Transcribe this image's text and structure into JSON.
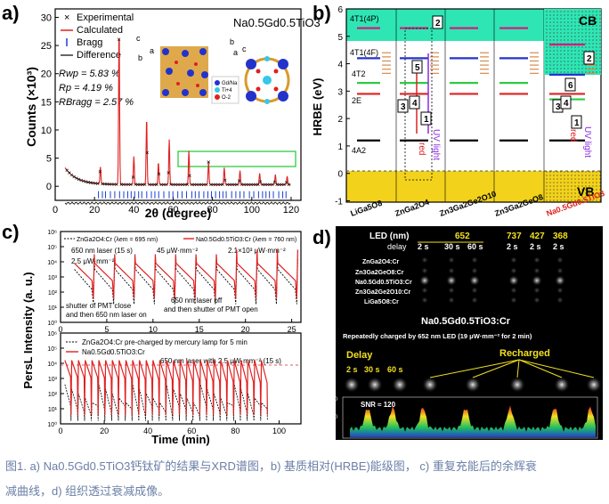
{
  "panel_a": {
    "label": "a)",
    "formula": "Na0.5Gd0.5TiO3",
    "legend": [
      "Experimental",
      "Calculated",
      "Bragg",
      "Difference"
    ],
    "stats": [
      "Rwp = 5.83 %",
      "Rp = 4.19 %",
      "RBragg = 2.57 %"
    ],
    "atoms": [
      "Gd/Na",
      "Ti+4",
      "O-2"
    ],
    "ylabel": "Counts (×10³)",
    "xlabel": "2θ (degree)",
    "xticks": [
      "0",
      "20",
      "40",
      "60",
      "80",
      "100",
      "120"
    ],
    "yticks": [
      "0",
      "5",
      "10",
      "15",
      "20",
      "25",
      "30"
    ],
    "axes_letters": [
      "c",
      "a",
      "b",
      "b",
      "c",
      "a"
    ],
    "colors": {
      "calc": "#e02020",
      "bragg": "#1a3fd8",
      "diff": "#000000",
      "exp": "#000000",
      "box": "#2ecc40"
    }
  },
  "panel_b": {
    "label": "b)",
    "ylabel": "HRBE (eV)",
    "yticks": [
      "-1",
      "0",
      "1",
      "2",
      "3",
      "4",
      "5",
      "6"
    ],
    "cb": "CB",
    "vb": "VB",
    "materials": [
      "LiGa5O8",
      "ZnGa2O4",
      "Zn3Ga2Ge2O10",
      "Zn3Ga2GeO8",
      "Na0.5Gd0.5TiO3"
    ],
    "state_labels": [
      "4T1(4P)",
      "4T1(4F)",
      "4T2",
      "2E",
      "4A2"
    ],
    "numbers": [
      "1",
      "2",
      "3",
      "4",
      "5",
      "6"
    ],
    "words": [
      "red",
      "UV light",
      "red",
      "UV light"
    ],
    "colors": {
      "cb": "#2ee6b4",
      "vb": "#f2d21a",
      "cr": "#e01080",
      "last": "#e02020"
    }
  },
  "panel_c": {
    "label": "c)",
    "top_legend": [
      "ZnGa2O4:Cr (λem = 695 nm)",
      "Na0.5Gd0.5TiO3:Cr (λem = 760 nm)"
    ],
    "top_annotations": [
      "650 nm laser (15 s)",
      "2.5 μW·mm⁻²",
      "45 μW·mm⁻²",
      "2.1×10³ μW·mm⁻²",
      "shutter of PMT close",
      "and then 650 nm laser on",
      "650 nm laser off",
      "and then shutter of PMT open"
    ],
    "top_xticks": [
      "0",
      "5",
      "10",
      "15",
      "20",
      "25"
    ],
    "bottom_legend": [
      "ZnGa2O4:Cr pre-charged by mercury lamp for 5 min",
      "Na0.5Gd0.5TiO3:Cr"
    ],
    "bottom_annotation": "650 nm laser with 2.5 μW·mm⁻² (15 s)",
    "bottom_xticks": [
      "0",
      "20",
      "40",
      "60",
      "80",
      "100"
    ],
    "yticks_top": [
      "10⁰",
      "10¹",
      "10²",
      "10³",
      "10⁴",
      "10⁵",
      "10⁶"
    ],
    "yticks_bottom": [
      "10⁰",
      "10¹",
      "10²",
      "10³",
      "10⁴",
      "10⁵",
      "10⁶"
    ],
    "ylabel": "PersL Intensity (a. u.)",
    "xlabel": "Time (min)"
  },
  "panel_d": {
    "label": "d)",
    "led_header": "LED  (nm)",
    "delay_label": "delay",
    "led_values": [
      "652",
      "737",
      "427",
      "368"
    ],
    "delays": [
      "2 s",
      "30 s",
      "60 s",
      "2 s",
      "2 s",
      "2 s"
    ],
    "samples": [
      "ZnGa2O4:Cr",
      "Zn3Ga2GeO8:Cr",
      "Na0.5Gd0.5TiO3:Cr",
      "Zn3Ga2Ge2O10:Cr",
      "LiGa5O8:Cr"
    ],
    "title": "Na0.5Gd0.5TiO3:Cr",
    "subtitle": "Repeatedly charged by 652 nm LED (19 μW·mm⁻² for 2 min)",
    "delay_heading": "Delay",
    "delay_row": [
      "2 s",
      "30 s",
      "60 s"
    ],
    "recharged": "Recharged",
    "snr": "SNR ≈ 120",
    "snr_yticks": [
      "0",
      "100",
      "200"
    ]
  },
  "caption": {
    "line1": "图1. a) Na0.5Gd0.5TiO3钙钛矿的结果与XRD谱图，b) 基质相对(HRBE)能级图， c) 重复充能后的余辉衰",
    "line2": "减曲线，d) 组织透过衰减成像。"
  }
}
